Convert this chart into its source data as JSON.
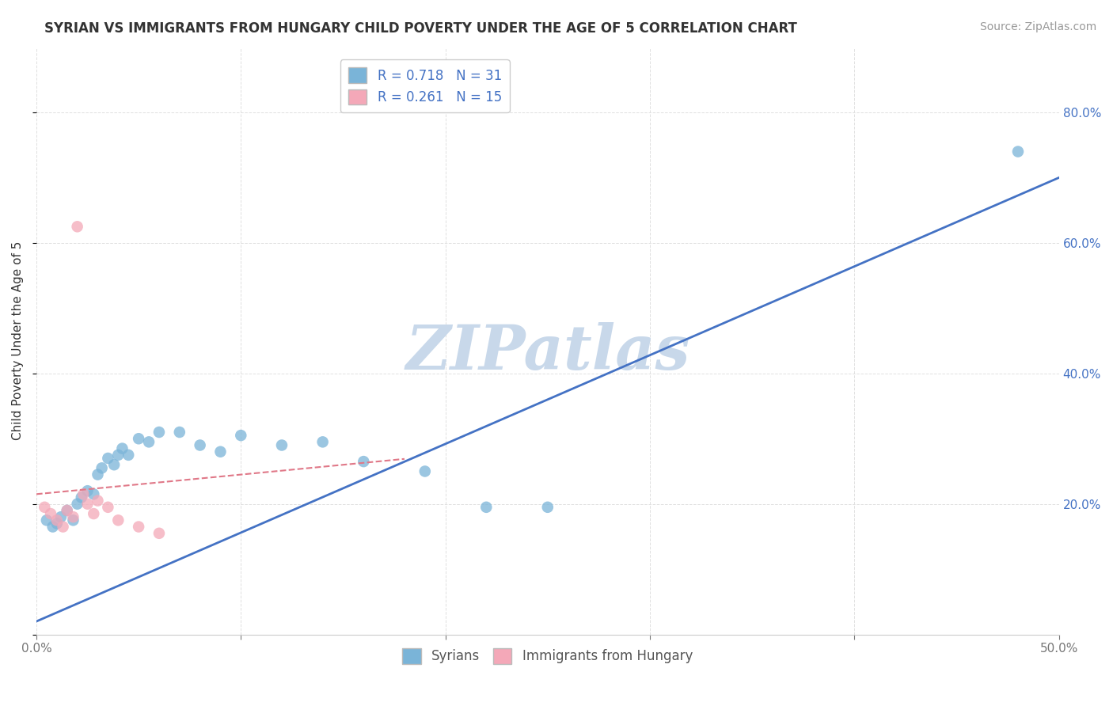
{
  "title": "SYRIAN VS IMMIGRANTS FROM HUNGARY CHILD POVERTY UNDER THE AGE OF 5 CORRELATION CHART",
  "source": "Source: ZipAtlas.com",
  "ylabel": "Child Poverty Under the Age of 5",
  "xlim": [
    0.0,
    0.5
  ],
  "ylim": [
    0.0,
    0.9
  ],
  "xticks": [
    0.0,
    0.1,
    0.2,
    0.3,
    0.4,
    0.5
  ],
  "xticklabels": [
    "0.0%",
    "",
    "",
    "",
    "",
    "50.0%"
  ],
  "yticks": [
    0.0,
    0.2,
    0.4,
    0.6,
    0.8
  ],
  "right_yticklabels": [
    "",
    "20.0%",
    "40.0%",
    "60.0%",
    "80.0%"
  ],
  "watermark_text": "ZIPatlas",
  "legend_top_labels": [
    "R = 0.718   N = 31",
    "R = 0.261   N = 15"
  ],
  "legend_bottom_labels": [
    "Syrians",
    "Immigrants from Hungary"
  ],
  "syrians_color": "#7ab4d8",
  "hungary_color": "#f4a8b8",
  "regression_syrian_color": "#4472c4",
  "regression_hungary_color": "#e07888",
  "regression_hungary_linestyle": "--",
  "syrians_x": [
    0.005,
    0.008,
    0.01,
    0.012,
    0.015,
    0.018,
    0.02,
    0.022,
    0.025,
    0.028,
    0.03,
    0.032,
    0.035,
    0.038,
    0.04,
    0.042,
    0.045,
    0.05,
    0.055,
    0.06,
    0.07,
    0.08,
    0.09,
    0.1,
    0.12,
    0.14,
    0.16,
    0.19,
    0.22,
    0.25,
    0.48
  ],
  "syrians_y": [
    0.175,
    0.165,
    0.17,
    0.18,
    0.19,
    0.175,
    0.2,
    0.21,
    0.22,
    0.215,
    0.245,
    0.255,
    0.27,
    0.26,
    0.275,
    0.285,
    0.275,
    0.3,
    0.295,
    0.31,
    0.31,
    0.29,
    0.28,
    0.305,
    0.29,
    0.295,
    0.265,
    0.25,
    0.195,
    0.195,
    0.74
  ],
  "hungary_x": [
    0.004,
    0.007,
    0.01,
    0.013,
    0.015,
    0.018,
    0.02,
    0.023,
    0.025,
    0.028,
    0.03,
    0.035,
    0.04,
    0.05,
    0.06
  ],
  "hungary_y": [
    0.195,
    0.185,
    0.175,
    0.165,
    0.19,
    0.18,
    0.625,
    0.215,
    0.2,
    0.185,
    0.205,
    0.195,
    0.175,
    0.165,
    0.155
  ],
  "grid_color": "#e0e0e0",
  "background_color": "#ffffff",
  "title_fontsize": 12,
  "source_fontsize": 10,
  "axis_label_fontsize": 11,
  "tick_fontsize": 11,
  "legend_fontsize": 12,
  "watermark_color": "#c8d8ea",
  "watermark_fontsize": 56,
  "regression_syrian_intercept": 0.02,
  "regression_syrian_slope": 1.36,
  "regression_hungary_intercept": 0.215,
  "regression_hungary_slope": 0.3
}
